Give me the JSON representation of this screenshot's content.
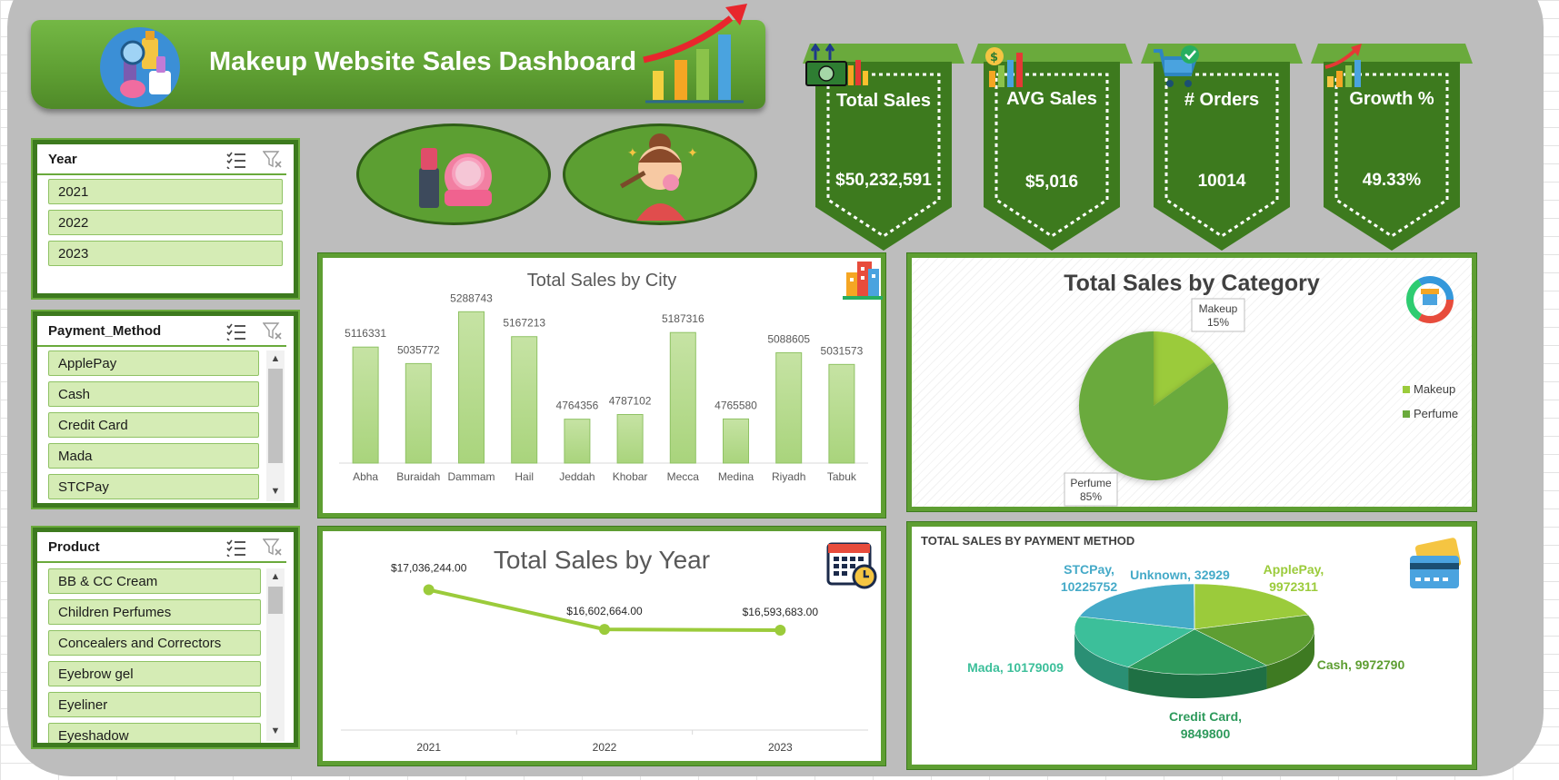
{
  "header": {
    "title": "Makeup Website Sales Dashboard"
  },
  "colors": {
    "brand_green": "#5e9e32",
    "dark_green": "#3d7a1e",
    "light_green": "#d5ecb5",
    "lime": "#9bcb3b"
  },
  "slicers": {
    "year": {
      "title": "Year",
      "items": [
        "2021",
        "2022",
        "2023"
      ]
    },
    "payment": {
      "title": "Payment_Method",
      "items": [
        "ApplePay",
        "Cash",
        "Credit Card",
        "Mada",
        "STCPay"
      ]
    },
    "product": {
      "title": "Product",
      "items": [
        "BB & CC Cream",
        "Children Perfumes",
        "Concealers and Correctors",
        "Eyebrow gel",
        "Eyeliner",
        "Eyeshadow"
      ]
    }
  },
  "kpis": [
    {
      "label": "Total Sales",
      "value": "$50,232,591",
      "icon": "money-chart-icon"
    },
    {
      "label": "AVG Sales",
      "value": "$5,016",
      "icon": "dollar-bars-icon"
    },
    {
      "label": "# Orders",
      "value": "10014",
      "icon": "cart-check-icon"
    },
    {
      "label": "Growth %",
      "value": "49.33%",
      "icon": "growth-arrow-icon"
    }
  ],
  "chart_data": [
    {
      "type": "bar",
      "title": "Total Sales by City",
      "categories": [
        "Abha",
        "Buraidah",
        "Dammam",
        "Hail",
        "Jeddah",
        "Khobar",
        "Mecca",
        "Medina",
        "Riyadh",
        "Tabuk"
      ],
      "values": [
        5116331,
        5035772,
        5288743,
        5167213,
        4764356,
        4787102,
        5187316,
        4765580,
        5088605,
        5031573
      ],
      "ylim": [
        4550000,
        5330000
      ],
      "grid": false
    },
    {
      "type": "pie",
      "title": "Total Sales by Category",
      "categories": [
        "Makeup",
        "Perfume"
      ],
      "values": [
        15,
        85
      ],
      "labels": [
        {
          "name": "Makeup",
          "pct": "15%"
        },
        {
          "name": "Perfume",
          "pct": "85%"
        }
      ],
      "colors": [
        "#9bcb3b",
        "#6aaa3c"
      ],
      "legend": "right"
    },
    {
      "type": "line",
      "title": "Total Sales by Year",
      "x": [
        "2021",
        "2022",
        "2023"
      ],
      "values": [
        17036244,
        16602664,
        16593683
      ],
      "data_labels": [
        "$17,036,244.00",
        "$16,602,664.00",
        "$16,593,683.00"
      ],
      "ylim": [
        15500000,
        17300000
      ]
    },
    {
      "type": "pie",
      "title": "TOTAL SALES BY PAYMENT METHOD",
      "categories": [
        "ApplePay",
        "Cash",
        "Credit Card",
        "Mada",
        "STCPay",
        "Unknown"
      ],
      "values": [
        9972311,
        9972790,
        9849800,
        10179009,
        10225752,
        32929
      ],
      "labels": [
        "ApplePay,\n9972311",
        "Cash, 9972790",
        "Credit Card,\n9849800",
        "Mada, 10179009",
        "STCPay,\n10225752",
        "Unknown, 32929"
      ],
      "colors": [
        "#9bcb3b",
        "#5e9e32",
        "#2e9a5c",
        "#3cbf9a",
        "#45aac8",
        "#45aac8"
      ]
    }
  ]
}
